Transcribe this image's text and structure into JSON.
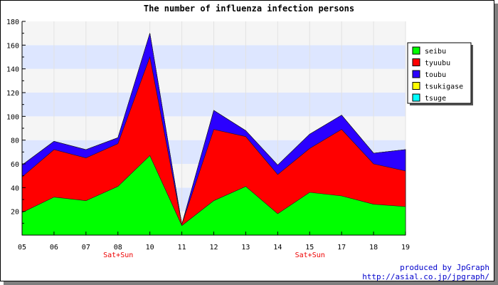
{
  "chart_data": {
    "type": "area",
    "stacked": true,
    "title": "The number of influenza infection persons",
    "categories": [
      "05",
      "06",
      "07",
      "08",
      "10",
      "11",
      "12",
      "13",
      "14",
      "15",
      "17",
      "18",
      "19"
    ],
    "weekend_marks": [
      {
        "category": "08",
        "label": "Sat+Sun"
      },
      {
        "category": "15",
        "label": "Sat+Sun"
      }
    ],
    "ylim": [
      0,
      180
    ],
    "yticks": [
      20,
      40,
      60,
      80,
      100,
      120,
      140,
      160,
      180
    ],
    "grid": true,
    "legend_position": "right",
    "series": [
      {
        "name": "seibu",
        "color": "#00ff00",
        "values": [
          19,
          32,
          29,
          41,
          67,
          8,
          29,
          41,
          18,
          36,
          33,
          26,
          24
        ]
      },
      {
        "name": "tyuubu",
        "color": "#ff0000",
        "values": [
          30,
          40,
          36,
          36,
          83,
          1,
          60,
          42,
          33,
          37,
          56,
          34,
          30
        ]
      },
      {
        "name": "toubu",
        "color": "#2b00ff",
        "values": [
          10,
          7,
          7,
          5,
          20,
          0,
          16,
          5,
          8,
          12,
          12,
          9,
          18
        ]
      },
      {
        "name": "tsukigase",
        "color": "#ffff00",
        "values": [
          0,
          0,
          0,
          0,
          0,
          0,
          0,
          0,
          0,
          0,
          0,
          0,
          0
        ]
      },
      {
        "name": "tsuge",
        "color": "#00ffff",
        "values": [
          0,
          0,
          0,
          0,
          0,
          0,
          0,
          0,
          0,
          0,
          0,
          0,
          0
        ]
      }
    ]
  },
  "footer": {
    "line1": "produced by JpGraph",
    "line2": "http://asial.co.jp/jpgraph/"
  }
}
